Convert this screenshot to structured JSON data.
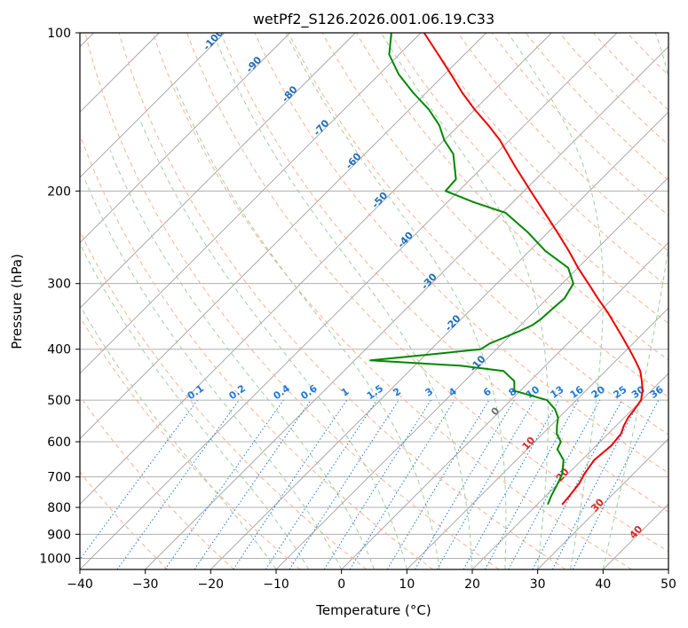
{
  "chart_data": {
    "type": "skew-t",
    "title": "wetPf2_S126.2026.001.06.19.C33",
    "xlabel": "Temperature (°C)",
    "ylabel": "Pressure (hPa)",
    "xlim": [
      -40,
      50
    ],
    "ylim": [
      1050,
      100
    ],
    "x_ticks": [
      -40,
      -30,
      -20,
      -10,
      0,
      10,
      20,
      30,
      40,
      50
    ],
    "x_tick_labels": [
      "−40",
      "−30",
      "−20",
      "−10",
      "0",
      "10",
      "20",
      "30",
      "40",
      "50"
    ],
    "y_ticks": [
      100,
      200,
      300,
      400,
      500,
      600,
      700,
      800,
      900,
      1000
    ],
    "y_tick_labels": [
      "100",
      "200",
      "300",
      "400",
      "500",
      "600",
      "700",
      "800",
      "900",
      "1000"
    ],
    "grid": true,
    "temperature_profile": {
      "name": "Temperature",
      "color": "#ee0000",
      "points": [
        [
          790,
          23.8
        ],
        [
          760,
          23.6
        ],
        [
          720,
          23.2
        ],
        [
          690,
          22.5
        ],
        [
          650,
          21.9
        ],
        [
          610,
          22.3
        ],
        [
          580,
          22.0
        ],
        [
          560,
          21.2
        ],
        [
          540,
          20.6
        ],
        [
          520,
          20.3
        ],
        [
          500,
          19.9
        ],
        [
          480,
          18.7
        ],
        [
          460,
          17.1
        ],
        [
          440,
          15.3
        ],
        [
          420,
          12.9
        ],
        [
          400,
          10.3
        ],
        [
          380,
          7.5
        ],
        [
          360,
          4.5
        ],
        [
          340,
          1.3
        ],
        [
          320,
          -2.3
        ],
        [
          300,
          -6.0
        ],
        [
          280,
          -10.0
        ],
        [
          260,
          -14.0
        ],
        [
          240,
          -18.5
        ],
        [
          220,
          -23.5
        ],
        [
          200,
          -29.0
        ],
        [
          180,
          -35.0
        ],
        [
          160,
          -41.5
        ],
        [
          150,
          -45.5
        ],
        [
          140,
          -50.0
        ],
        [
          130,
          -54.5
        ],
        [
          120,
          -59.0
        ],
        [
          110,
          -64.0
        ],
        [
          100,
          -69.5
        ]
      ]
    },
    "dewpoint_profile": {
      "name": "Dewpoint",
      "color": "#008800",
      "points": [
        [
          790,
          21.6
        ],
        [
          760,
          20.8
        ],
        [
          720,
          19.9
        ],
        [
          690,
          19.1
        ],
        [
          650,
          17.2
        ],
        [
          620,
          14.6
        ],
        [
          600,
          14.0
        ],
        [
          580,
          12.2
        ],
        [
          560,
          11.0
        ],
        [
          540,
          9.9
        ],
        [
          520,
          8.1
        ],
        [
          500,
          5.5
        ],
        [
          480,
          -0.9
        ],
        [
          460,
          -2.4
        ],
        [
          440,
          -5.6
        ],
        [
          430,
          -13.0
        ],
        [
          420,
          -27.6
        ],
        [
          410,
          -19.8
        ],
        [
          400,
          -12.4
        ],
        [
          390,
          -11.9
        ],
        [
          380,
          -10.6
        ],
        [
          370,
          -9.3
        ],
        [
          360,
          -8.2
        ],
        [
          350,
          -7.8
        ],
        [
          340,
          -7.7
        ],
        [
          320,
          -7.4
        ],
        [
          300,
          -8.3
        ],
        [
          280,
          -11.5
        ],
        [
          260,
          -17.6
        ],
        [
          240,
          -23.0
        ],
        [
          220,
          -29.5
        ],
        [
          210,
          -36.0
        ],
        [
          200,
          -42.0
        ],
        [
          190,
          -42.2
        ],
        [
          170,
          -46.5
        ],
        [
          160,
          -50.0
        ],
        [
          150,
          -53.0
        ],
        [
          140,
          -57.0
        ],
        [
          130,
          -62.0
        ],
        [
          120,
          -67.0
        ],
        [
          110,
          -71.5
        ],
        [
          100,
          -74.5
        ]
      ]
    },
    "reference_lines": {
      "isotherms_step_c": 10,
      "dry_adiabat_theta_k": [
        -30,
        -20,
        -10,
        0,
        10,
        20,
        30,
        40,
        50,
        60,
        70,
        80,
        90,
        100,
        110,
        120,
        130,
        140,
        150,
        160,
        170,
        180
      ],
      "moist_adiabat_start_c": [
        -10,
        -5,
        0,
        5,
        10,
        15,
        20,
        25,
        30,
        35,
        40
      ],
      "mixing_ratio_g_per_kg": [
        0.1,
        0.2,
        0.4,
        0.6,
        1,
        1.5,
        2,
        3,
        4,
        6,
        8,
        10,
        13,
        16,
        20,
        25,
        30,
        36
      ],
      "mixing_ratio_labels": [
        "0.1",
        "0.2",
        "0.4",
        "0.6",
        "1",
        "1.5",
        "2",
        "3",
        "4",
        "6",
        "8",
        "10",
        "13",
        "16",
        "20",
        "25",
        "30",
        "36"
      ]
    },
    "annotations": {
      "isotherm_labels_blue": [
        "-100",
        "-90",
        "-80",
        "-70",
        "-60",
        "-50",
        "-40",
        "-30",
        "-20",
        "-10"
      ],
      "zero_label": "0",
      "isotherm_labels_red": [
        "10",
        "20",
        "30",
        "40"
      ]
    },
    "colors": {
      "isotherm_grid": "#a0a0a0",
      "pressure_grid": "#b0b0b0",
      "dry_adiabat": "#ffb090",
      "moist_adiabat": "#9fd09f",
      "mixing_ratio": "#1f78d8",
      "label_blue": "#1f6db5",
      "label_red": "#d62728",
      "label_gray": "#707070"
    }
  }
}
